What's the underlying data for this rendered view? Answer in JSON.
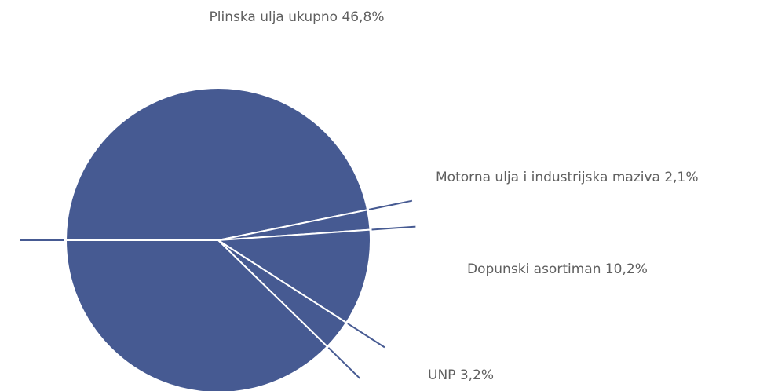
{
  "chart_data": {
    "type": "pie",
    "categories": [
      "Plinska ulja ukupno 46,8%",
      "Motorna ulja i industrijska maziva 2,1%",
      "Dopunski asortiman 10,2%",
      "UNP 3,2%",
      null
    ],
    "values": [
      46.8,
      2.1,
      10.2,
      3.2,
      37.7
    ],
    "color": "#465a92"
  }
}
